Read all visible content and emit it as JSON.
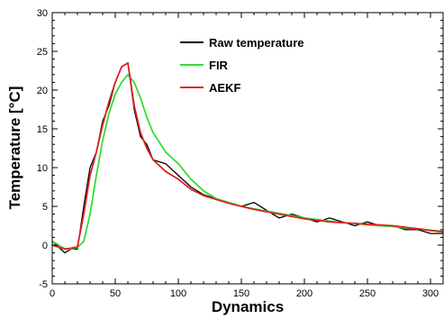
{
  "chart_data": {
    "type": "line",
    "title": "",
    "xlabel": "Dynamics",
    "ylabel": "Temperature [°C]",
    "xlim": [
      0,
      310
    ],
    "ylim": [
      -5,
      30
    ],
    "grid": false,
    "legend_position": "top-right",
    "x_ticks": [
      0,
      50,
      100,
      150,
      200,
      250,
      300
    ],
    "x_tick_labels": [
      "0",
      "50",
      "100",
      "150",
      "200",
      "250",
      "300"
    ],
    "y_ticks": [
      -5,
      0,
      5,
      10,
      15,
      20,
      25,
      30
    ],
    "y_tick_labels": [
      "-5",
      "0",
      "5",
      "10",
      "15",
      "20",
      "25",
      "30"
    ],
    "x": [
      0,
      10,
      15,
      20,
      25,
      30,
      35,
      40,
      45,
      50,
      55,
      60,
      65,
      70,
      75,
      80,
      90,
      100,
      110,
      120,
      130,
      140,
      150,
      160,
      170,
      180,
      190,
      200,
      210,
      220,
      230,
      240,
      250,
      260,
      270,
      280,
      290,
      300,
      310
    ],
    "series": [
      {
        "name": "Raw temperature",
        "color": "#000000",
        "values": [
          0.5,
          -1.0,
          -0.5,
          -0.5,
          5.0,
          10.0,
          12.0,
          16.0,
          18.0,
          21.0,
          23.0,
          23.5,
          17.5,
          14.0,
          13.0,
          11.0,
          10.5,
          9.0,
          7.5,
          6.5,
          6.0,
          5.5,
          5.0,
          5.5,
          4.5,
          3.5,
          4.0,
          3.5,
          3.0,
          3.5,
          3.0,
          2.5,
          3.0,
          2.5,
          2.5,
          2.0,
          2.0,
          1.5,
          1.5
        ]
      },
      {
        "name": "FIR",
        "color": "#33dd33",
        "values": [
          0.5,
          -0.5,
          -0.5,
          -0.3,
          0.5,
          4.0,
          9.0,
          13.5,
          17.0,
          19.5,
          21.0,
          22.0,
          21.0,
          19.0,
          16.5,
          14.5,
          12.0,
          10.5,
          8.5,
          7.0,
          6.0,
          5.5,
          5.0,
          4.7,
          4.4,
          4.1,
          3.8,
          3.5,
          3.3,
          3.1,
          2.9,
          2.8,
          2.6,
          2.5,
          2.4,
          2.2,
          2.1,
          1.9,
          1.8
        ]
      },
      {
        "name": "AEKF",
        "color": "#dd2222",
        "values": [
          0.0,
          -0.5,
          -0.4,
          -0.2,
          4.0,
          9.0,
          12.0,
          15.5,
          18.5,
          21.0,
          23.0,
          23.5,
          18.0,
          14.5,
          12.5,
          11.0,
          9.5,
          8.5,
          7.2,
          6.4,
          5.9,
          5.4,
          5.0,
          4.6,
          4.3,
          4.0,
          3.7,
          3.4,
          3.2,
          3.0,
          2.9,
          2.8,
          2.7,
          2.6,
          2.5,
          2.3,
          2.1,
          1.9,
          1.7
        ]
      }
    ]
  }
}
